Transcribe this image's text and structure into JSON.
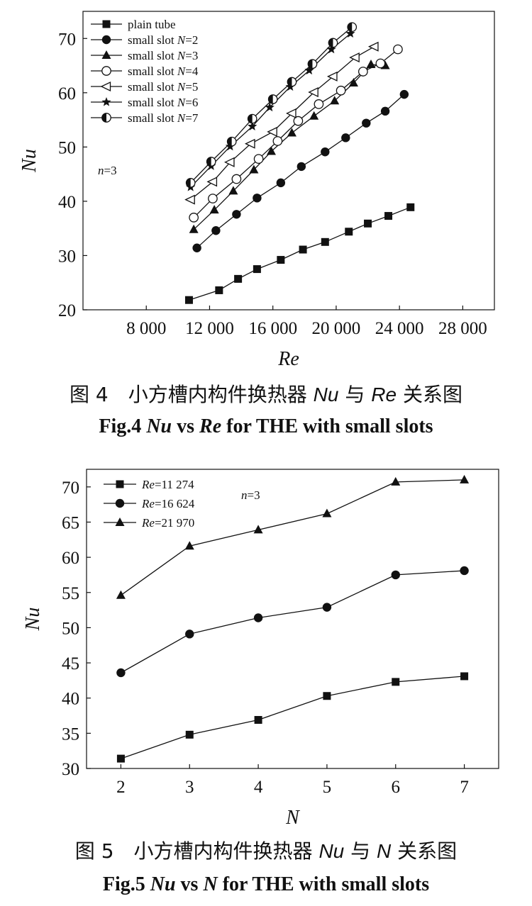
{
  "chart_data": [
    {
      "type": "line",
      "xlabel": "Re",
      "ylabel": "Nu",
      "xlim": [
        4000,
        30000
      ],
      "ylim": [
        20,
        75
      ],
      "xticks": [
        8000,
        12000,
        16000,
        20000,
        24000,
        28000
      ],
      "xtick_labels": [
        "8 000",
        "12 000",
        "16 000",
        "20 000",
        "24 000",
        "28 000"
      ],
      "yticks": [
        20,
        30,
        40,
        50,
        60,
        70
      ],
      "ytick_labels": [
        "20",
        "30",
        "40",
        "50",
        "60",
        "70"
      ],
      "annotation": {
        "var": "n",
        "eq": "=3"
      },
      "legend_position": "top-left",
      "grid": false,
      "caption_cn": {
        "fig": "图 4",
        "pre": "小方槽内构件换热器 ",
        "v1": "Nu",
        "mid": "与 ",
        "v2": "Re",
        "post": "关系图"
      },
      "caption_en": {
        "fig": "Fig.4 ",
        "v1": "Nu",
        "mid": " vs ",
        "v2": "Re",
        "post": " for THE with small slots"
      },
      "series": [
        {
          "label_pre": "plain tube",
          "label_var": "",
          "label_post": "",
          "marker": "square",
          "x": [
            10700,
            12600,
            13800,
            15000,
            16500,
            17900,
            19300,
            20800,
            22000,
            23300,
            24700
          ],
          "y": [
            21.8,
            23.6,
            25.7,
            27.5,
            29.2,
            31.1,
            32.5,
            34.4,
            35.9,
            37.3,
            38.9
          ]
        },
        {
          "label_pre": "small slot ",
          "label_var": "N",
          "label_post": "=2",
          "marker": "circle-filled",
          "x": [
            11200,
            12400,
            13700,
            15000,
            16500,
            17800,
            19300,
            20600,
            21900,
            23100,
            24300
          ],
          "y": [
            31.4,
            34.6,
            37.6,
            40.6,
            43.4,
            46.4,
            49.1,
            51.7,
            54.4,
            56.6,
            59.7
          ]
        },
        {
          "label_pre": "small slot ",
          "label_var": "N",
          "label_post": "=3",
          "marker": "triangle",
          "x": [
            11000,
            12300,
            13500,
            14800,
            15900,
            17200,
            18600,
            19900,
            21100,
            22200,
            23100
          ],
          "y": [
            34.8,
            38.4,
            41.9,
            45.8,
            49.2,
            52.6,
            55.7,
            58.5,
            61.8,
            65.2,
            65.0
          ]
        },
        {
          "label_pre": "small slot ",
          "label_var": "N",
          "label_post": "=4",
          "marker": "circle-open",
          "x": [
            11000,
            12200,
            13700,
            15100,
            16300,
            17600,
            18900,
            20300,
            21700,
            22800,
            23900
          ],
          "y": [
            37.0,
            40.5,
            44.1,
            47.8,
            51.1,
            54.8,
            57.9,
            60.4,
            63.9,
            65.4,
            68.0
          ]
        },
        {
          "label_pre": "small slot ",
          "label_var": "N",
          "label_post": "=5",
          "marker": "triangle-left-open",
          "x": [
            10800,
            12200,
            13300,
            14600,
            16000,
            17200,
            18600,
            19800,
            21200,
            22400
          ],
          "y": [
            40.3,
            43.6,
            47.2,
            50.6,
            52.8,
            56.2,
            60.1,
            63.0,
            66.5,
            68.5
          ]
        },
        {
          "label_pre": "small slot ",
          "label_var": "N",
          "label_post": "=6",
          "marker": "star",
          "x": [
            10800,
            12100,
            13300,
            14700,
            15800,
            17100,
            18300,
            19700,
            20900
          ],
          "y": [
            42.6,
            46.5,
            50.1,
            53.8,
            57.3,
            61.1,
            64.1,
            68.0,
            70.9
          ]
        },
        {
          "label_pre": "small slot ",
          "label_var": "N",
          "label_post": "=7",
          "marker": "circle-half",
          "x": [
            10800,
            12100,
            13400,
            14700,
            16000,
            17200,
            18500,
            19800,
            21000
          ],
          "y": [
            43.4,
            47.3,
            51.0,
            55.2,
            58.8,
            62.0,
            65.3,
            69.2,
            72.1
          ]
        }
      ]
    },
    {
      "type": "line",
      "xlabel": "N",
      "ylabel": "Nu",
      "xlim": [
        1.5,
        7.5
      ],
      "ylim": [
        30,
        72.5
      ],
      "x": [
        2,
        3,
        4,
        5,
        6,
        7
      ],
      "xticks": [
        2,
        3,
        4,
        5,
        6,
        7
      ],
      "xtick_labels": [
        "2",
        "3",
        "4",
        "5",
        "6",
        "7"
      ],
      "yticks": [
        30,
        35,
        40,
        45,
        50,
        55,
        60,
        65,
        70
      ],
      "ytick_labels": [
        "30",
        "35",
        "40",
        "45",
        "50",
        "55",
        "60",
        "65",
        "70"
      ],
      "annotation": {
        "var": "n",
        "eq": "=3"
      },
      "legend_position": "top-left",
      "grid": false,
      "caption_cn": {
        "fig": "图 5",
        "pre": "小方槽内构件换热器 ",
        "v1": "Nu",
        "mid": "与 ",
        "v2": "N",
        "post": "关系图"
      },
      "caption_en": {
        "fig": "Fig.5 ",
        "v1": "Nu",
        "mid": " vs ",
        "v2": "N",
        "post": " for THE with small slots"
      },
      "series": [
        {
          "label_var": "Re",
          "label_post": "=11 274",
          "marker": "square",
          "y": [
            31.4,
            34.8,
            36.9,
            40.3,
            42.3,
            43.1
          ]
        },
        {
          "label_var": "Re",
          "label_post": "=16 624",
          "marker": "circle-filled",
          "y": [
            43.6,
            49.1,
            51.4,
            52.9,
            57.5,
            58.1
          ]
        },
        {
          "label_var": "Re",
          "label_post": "=21 970",
          "marker": "triangle",
          "y": [
            54.6,
            61.6,
            63.9,
            66.2,
            70.7,
            71.0
          ]
        }
      ]
    }
  ]
}
